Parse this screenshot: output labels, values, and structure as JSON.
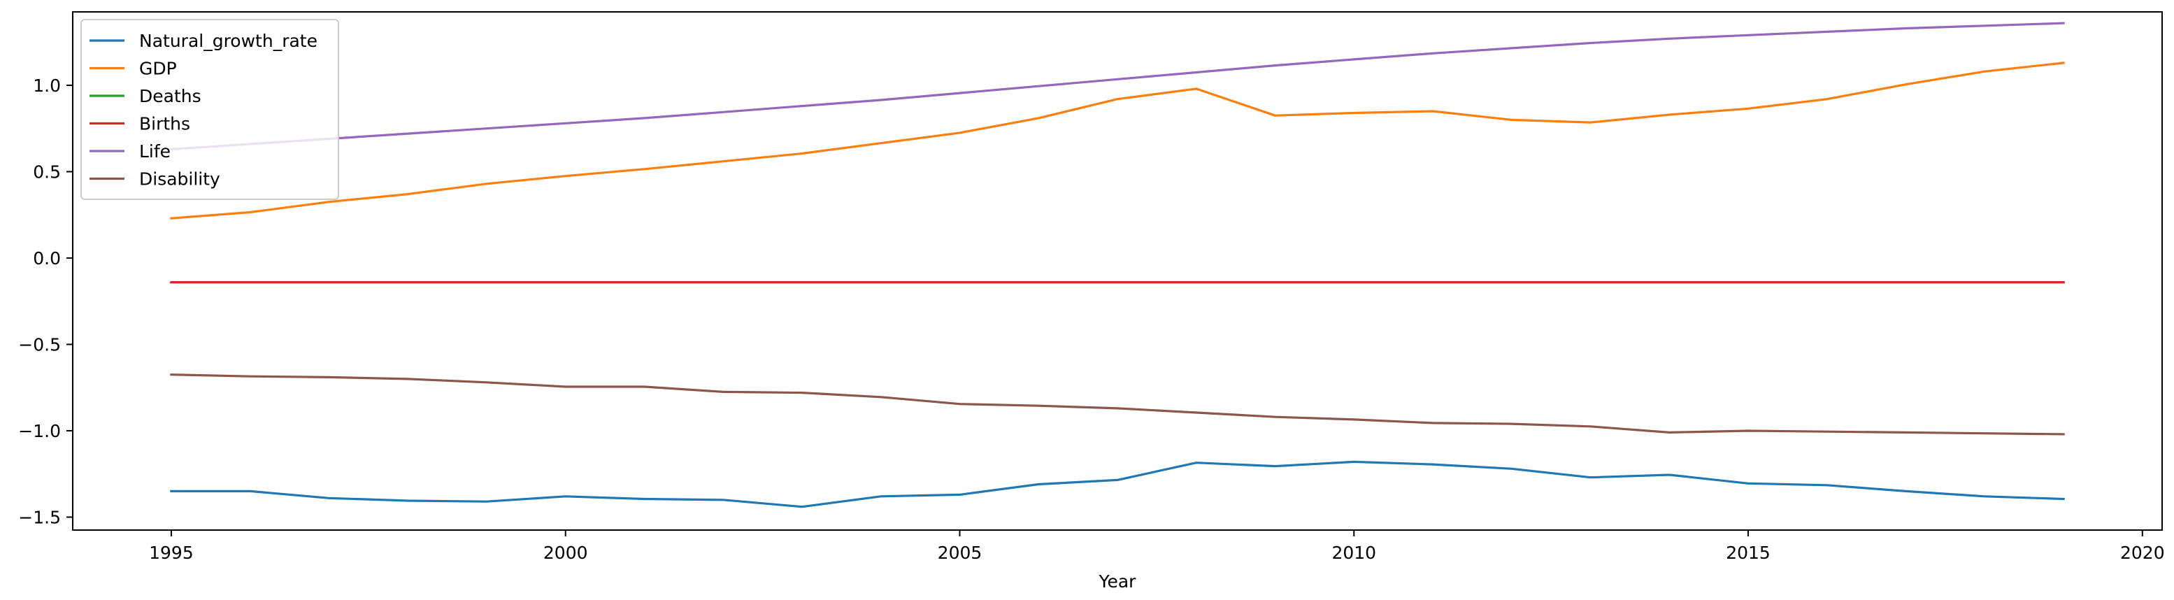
{
  "chart_data": {
    "type": "line",
    "title": "",
    "xlabel": "Year",
    "ylabel": "",
    "xlim": [
      1993.75,
      2020.25
    ],
    "ylim": [
      -1.575,
      1.425
    ],
    "x_ticks": [
      1995,
      2000,
      2005,
      2010,
      2015,
      2020
    ],
    "y_ticks": [
      -1.5,
      -1.0,
      -0.5,
      0.0,
      0.5,
      1.0
    ],
    "y_tick_labels": [
      "−1.5",
      "−1.0",
      "−0.5",
      "0.0",
      "0.5",
      "1.0"
    ],
    "grid": false,
    "legend_position": "upper-left",
    "x": [
      1995,
      1996,
      1997,
      1998,
      1999,
      2000,
      2001,
      2002,
      2003,
      2004,
      2005,
      2006,
      2007,
      2008,
      2009,
      2010,
      2011,
      2012,
      2013,
      2014,
      2015,
      2016,
      2017,
      2018,
      2019
    ],
    "series": [
      {
        "name": "Natural_growth_rate",
        "color": "#1f77b4",
        "values": [
          -1.35,
          -1.35,
          -1.39,
          -1.405,
          -1.41,
          -1.38,
          -1.395,
          -1.4,
          -1.44,
          -1.38,
          -1.37,
          -1.31,
          -1.285,
          -1.185,
          -1.205,
          -1.18,
          -1.195,
          -1.22,
          -1.27,
          -1.255,
          -1.305,
          -1.315,
          -1.35,
          -1.38,
          -1.395
        ]
      },
      {
        "name": "GDP",
        "color": "#ff7f0e",
        "values": [
          0.23,
          0.265,
          0.325,
          0.37,
          0.43,
          0.475,
          0.515,
          0.56,
          0.605,
          0.665,
          0.725,
          0.81,
          0.92,
          0.98,
          0.825,
          0.84,
          0.85,
          0.8,
          0.785,
          0.83,
          0.865,
          0.92,
          1.005,
          1.08,
          1.13
        ]
      },
      {
        "name": "Deaths",
        "color": "#2ca02c",
        "values": [
          -0.14,
          -0.14,
          -0.14,
          -0.14,
          -0.14,
          -0.14,
          -0.14,
          -0.14,
          -0.14,
          -0.14,
          -0.14,
          -0.14,
          -0.14,
          -0.14,
          -0.14,
          -0.14,
          -0.14,
          -0.14,
          -0.14,
          -0.14,
          -0.14,
          -0.14,
          -0.14,
          -0.14,
          -0.14
        ]
      },
      {
        "name": "Births",
        "color": "#d62728",
        "values": [
          -0.14,
          -0.14,
          -0.14,
          -0.14,
          -0.14,
          -0.14,
          -0.14,
          -0.14,
          -0.14,
          -0.14,
          -0.14,
          -0.14,
          -0.14,
          -0.14,
          -0.14,
          -0.14,
          -0.14,
          -0.14,
          -0.14,
          -0.14,
          -0.14,
          -0.14,
          -0.14,
          -0.14,
          -0.14
        ]
      },
      {
        "name": "Life",
        "color": "#9467bd",
        "values": [
          0.63,
          0.66,
          0.69,
          0.72,
          0.75,
          0.78,
          0.81,
          0.845,
          0.88,
          0.915,
          0.955,
          0.995,
          1.035,
          1.075,
          1.115,
          1.15,
          1.185,
          1.215,
          1.245,
          1.27,
          1.29,
          1.31,
          1.33,
          1.345,
          1.36
        ]
      },
      {
        "name": "Disability",
        "color": "#8c564b",
        "values": [
          -0.675,
          -0.685,
          -0.69,
          -0.7,
          -0.72,
          -0.745,
          -0.745,
          -0.775,
          -0.78,
          -0.805,
          -0.845,
          -0.855,
          -0.87,
          -0.895,
          -0.92,
          -0.935,
          -0.955,
          -0.96,
          -0.975,
          -1.01,
          -1.0,
          -1.005,
          -1.01,
          -1.015,
          -1.02
        ]
      }
    ]
  }
}
